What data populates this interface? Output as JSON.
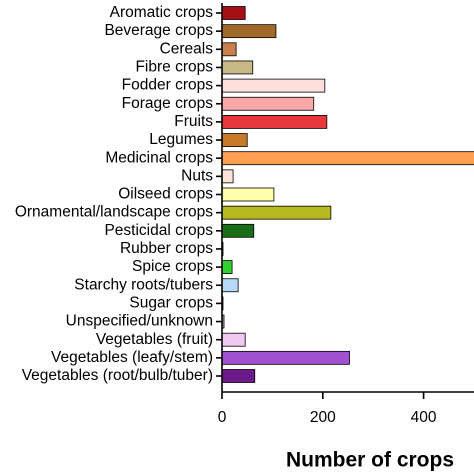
{
  "chart_data": {
    "type": "barh",
    "xlabel": "Number of crops",
    "categories": [
      "Aromatic crops",
      "Beverage crops",
      "Cereals",
      "Fibre crops",
      "Fodder crops",
      "Forage crops",
      "Fruits",
      "Legumes",
      "Medicinal crops",
      "Nuts",
      "Oilseed crops",
      "Ornamental/landscape crops",
      "Pesticidal crops",
      "Rubber crops",
      "Spice crops",
      "Starchy roots/tubers",
      "Sugar crops",
      "Unspecified/unknown",
      "Vegetables (fruit)",
      "Vegetables (leafy/stem)",
      "Vegetables (root/bulb/tuber)"
    ],
    "values": [
      46,
      107,
      28,
      61,
      204,
      182,
      208,
      50,
      520,
      22,
      103,
      216,
      63,
      2,
      20,
      32,
      2,
      4,
      46,
      253,
      65
    ],
    "colors": [
      "#a50f15",
      "#a0692a",
      "#c8814b",
      "#c8b888",
      "#fde0dd",
      "#f9a8a8",
      "#e8373a",
      "#c87a2a",
      "#ffa050",
      "#fde2d8",
      "#ffffaa",
      "#b8b820",
      "#1a6e1a",
      "#888888",
      "#30d030",
      "#b8d8f8",
      "#cccccc",
      "#aaaaaa",
      "#f0c8f0",
      "#a050d0",
      "#6a1a8a"
    ],
    "xlim": [
      0,
      500
    ],
    "xticks": [
      0,
      200,
      400
    ]
  }
}
